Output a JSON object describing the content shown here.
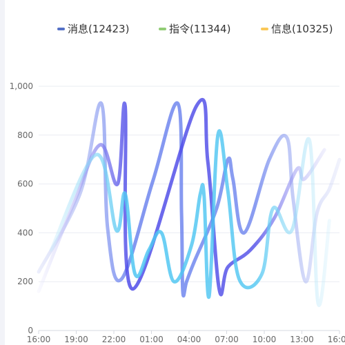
{
  "chart_data": {
    "type": "line",
    "title": "",
    "xlabel": "",
    "ylabel": "",
    "ylim": [
      0,
      1000
    ],
    "y_ticks": [
      0,
      200,
      400,
      600,
      800,
      1000
    ],
    "y_tick_labels": [
      "0",
      "200",
      "400",
      "600",
      "800",
      "1,000"
    ],
    "x_tick_labels": [
      "16:00",
      "19:00",
      "22:00",
      "01:00",
      "04:00",
      "07:00",
      "10:00",
      "13:00",
      "16:00"
    ],
    "grid": "horizontal",
    "legend_position": "top-center",
    "legend": [
      {
        "label": "消息(12423)",
        "color": "#5470c6"
      },
      {
        "label": "指令(11344)",
        "color": "#91cc75"
      },
      {
        "label": "信息(10325)",
        "color": "#fac858"
      }
    ],
    "series": [
      {
        "name": "消息(12423)",
        "color_start": "#c7cdf5",
        "color_end": "#6d84ee",
        "x": [
          0,
          3.3,
          5.0,
          5.5,
          6.6,
          9.1,
          11.1,
          11.4,
          11.5,
          11.8,
          12.4,
          14.2,
          15.1,
          15.5,
          16.4,
          18.4,
          19.8,
          20.3,
          21.3,
          22.2,
          23.2,
          24.0
        ],
        "y": [
          240,
          560,
          930,
          420,
          210,
          610,
          930,
          480,
          160,
          200,
          280,
          500,
          700,
          620,
          400,
          700,
          790,
          540,
          200,
          480,
          580,
          700
        ]
      },
      {
        "name": "指令(11344)",
        "color_start": "#efeefc",
        "color_end": "#4f4ce8",
        "x": [
          0,
          2.8,
          4.9,
          6.3,
          6.9,
          7.5,
          12.6,
          13.5,
          14.4,
          15.1,
          16.9,
          18.8,
          20.6,
          21.2,
          22.8
        ],
        "y": [
          160,
          520,
          760,
          600,
          920,
          170,
          920,
          690,
          170,
          260,
          330,
          460,
          660,
          620,
          740
        ]
      },
      {
        "name": "信息(10325)",
        "color_start": "#dff3fc",
        "color_end": "#4fc6f2",
        "x": [
          1.0,
          4.6,
          6.2,
          6.9,
          7.7,
          8.8,
          9.8,
          10.8,
          12.2,
          12.9,
          13.2,
          13.6,
          14.3,
          15.1,
          16.0,
          17.8,
          18.7,
          20.2,
          21.6,
          22.3,
          23.2
        ],
        "y": [
          330,
          720,
          410,
          560,
          230,
          330,
          400,
          200,
          350,
          560,
          550,
          140,
          800,
          570,
          210,
          230,
          500,
          410,
          780,
          110,
          450
        ]
      }
    ]
  }
}
